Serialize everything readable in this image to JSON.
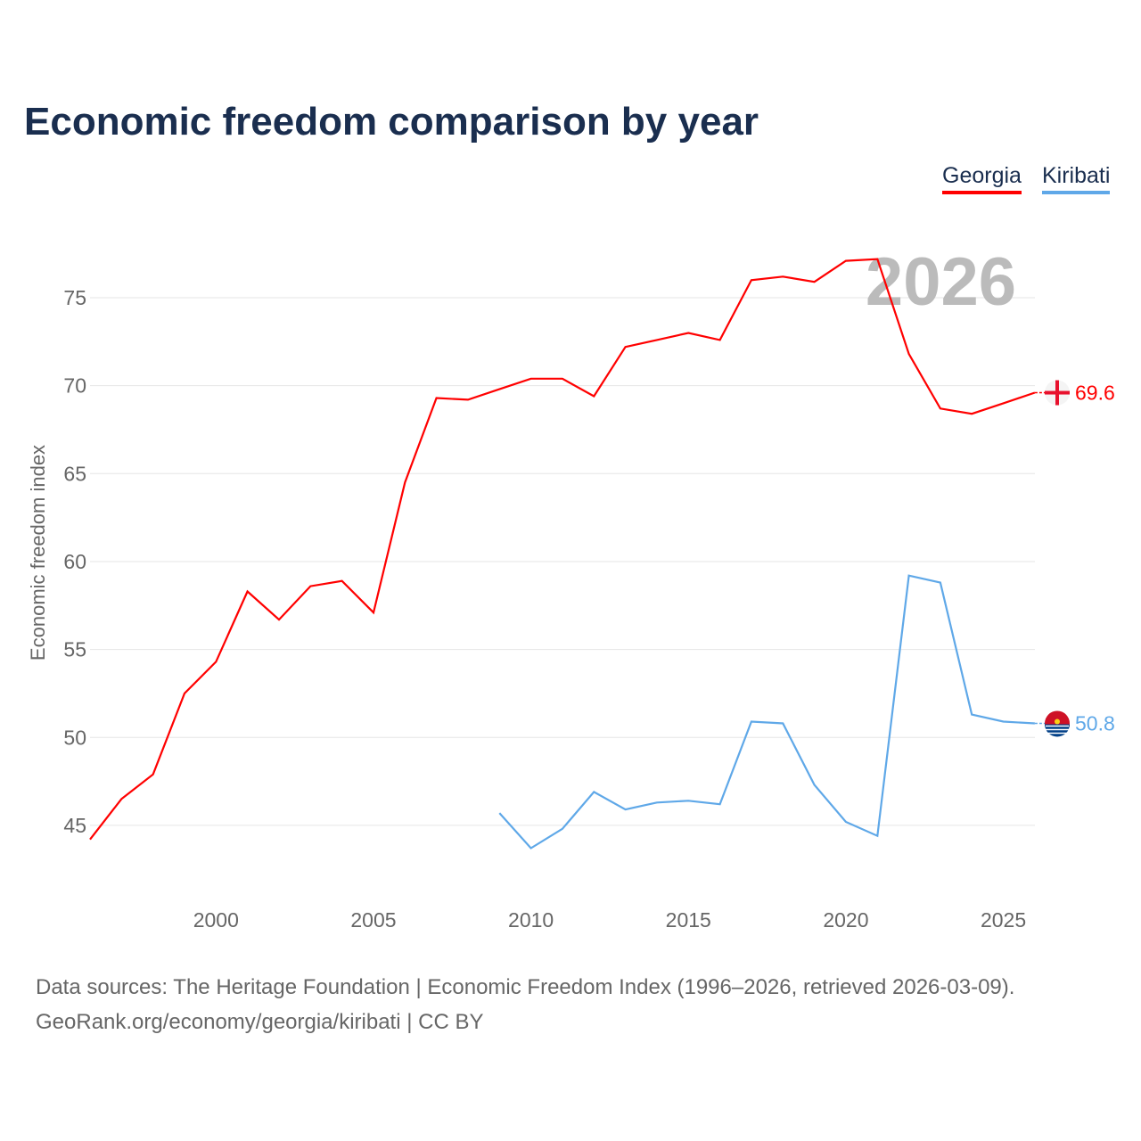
{
  "chart_data": {
    "type": "line",
    "title": "Economic freedom comparison by year",
    "ylabel": "Economic freedom index",
    "xlabel": "",
    "xlim": [
      1996,
      2026
    ],
    "ylim": [
      40.7,
      80.3
    ],
    "xticks": [
      2000,
      2005,
      2010,
      2015,
      2020,
      2025
    ],
    "yticks": [
      45,
      50,
      55,
      60,
      65,
      70,
      75
    ],
    "grid": true,
    "legend_position": "top-right",
    "watermark_year": "2026",
    "series": [
      {
        "name": "Georgia",
        "color": "#ff0000",
        "end_label": "69.6",
        "x": [
          1996,
          1997,
          1998,
          1999,
          2000,
          2001,
          2002,
          2003,
          2004,
          2005,
          2006,
          2007,
          2008,
          2009,
          2010,
          2011,
          2012,
          2013,
          2014,
          2015,
          2016,
          2017,
          2018,
          2019,
          2020,
          2021,
          2022,
          2023,
          2024,
          2025,
          2026
        ],
        "y": [
          44.2,
          46.5,
          47.9,
          52.5,
          54.3,
          58.3,
          56.7,
          58.6,
          58.9,
          57.1,
          64.5,
          69.3,
          69.2,
          69.8,
          70.4,
          70.4,
          69.4,
          72.2,
          72.6,
          73.0,
          72.6,
          76.0,
          76.2,
          75.9,
          77.1,
          77.2,
          71.8,
          68.7,
          68.4,
          69.0,
          69.6
        ]
      },
      {
        "name": "Kiribati",
        "color": "#5fa8e8",
        "end_label": "50.8",
        "x": [
          2009,
          2010,
          2011,
          2012,
          2013,
          2014,
          2015,
          2016,
          2017,
          2018,
          2019,
          2020,
          2021,
          2022,
          2023,
          2024,
          2025,
          2026
        ],
        "y": [
          45.7,
          43.7,
          44.8,
          46.9,
          45.9,
          46.3,
          46.4,
          46.2,
          50.9,
          50.8,
          47.3,
          45.2,
          44.4,
          59.2,
          58.8,
          51.3,
          50.9,
          50.8
        ]
      }
    ]
  },
  "footer": {
    "line1": "Data sources: The Heritage Foundation | Economic Freedom Index (1996–2026, retrieved 2026-03-09).",
    "line2": "GeoRank.org/economy/georgia/kiribati | CC BY"
  }
}
